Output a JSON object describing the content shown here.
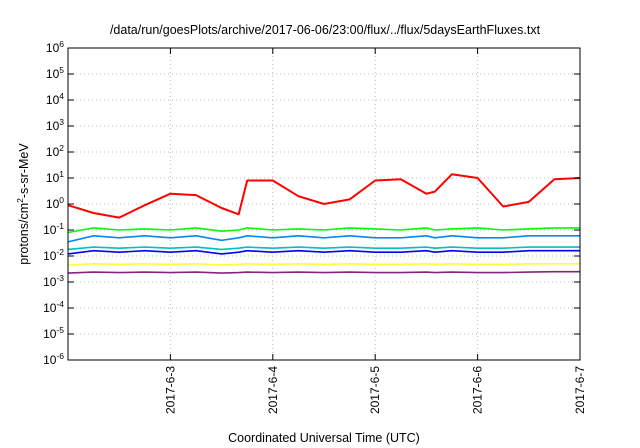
{
  "chart_data": {
    "type": "line",
    "title": "/data/run/goesPlots/archive/2017-06-06/23:00/flux/../flux/5daysEarthFluxes.txt",
    "xlabel": "Coordinated Universal Time (UTC)",
    "ylabel": {
      "base": "protons/cm",
      "sup": "2",
      "rest": "-s-sr-MeV"
    },
    "y_scale": "log",
    "ylim": [
      1e-06,
      1000000.0
    ],
    "y_ticks": [
      {
        "value": 1e-06,
        "base": "10",
        "exp": "-6"
      },
      {
        "value": 1e-05,
        "base": "10",
        "exp": "-5"
      },
      {
        "value": 0.0001,
        "base": "10",
        "exp": "-4"
      },
      {
        "value": 0.001,
        "base": "10",
        "exp": "-3"
      },
      {
        "value": 0.01,
        "base": "10",
        "exp": "-2"
      },
      {
        "value": 0.1,
        "base": "10",
        "exp": "-1"
      },
      {
        "value": 1.0,
        "base": "10",
        "exp": "0"
      },
      {
        "value": 10.0,
        "base": "10",
        "exp": "1"
      },
      {
        "value": 100.0,
        "base": "10",
        "exp": "2"
      },
      {
        "value": 1000.0,
        "base": "10",
        "exp": "3"
      },
      {
        "value": 10000.0,
        "base": "10",
        "exp": "4"
      },
      {
        "value": 100000.0,
        "base": "10",
        "exp": "5"
      },
      {
        "value": 1000000.0,
        "base": "10",
        "exp": "6"
      }
    ],
    "xlim": [
      "2017-06-02 00:00",
      "2017-06-07 00:00"
    ],
    "x_ticks": [
      "2017-6-3",
      "2017-6-4",
      "2017-6-5",
      "2017-6-6",
      "2017-6-7"
    ],
    "grid": true,
    "x": [
      "2017-06-02 00:00",
      "2017-06-02 06:00",
      "2017-06-02 12:00",
      "2017-06-02 18:00",
      "2017-06-03 00:00",
      "2017-06-03 06:00",
      "2017-06-03 12:00",
      "2017-06-03 16:00",
      "2017-06-03 18:00",
      "2017-06-04 00:00",
      "2017-06-04 06:00",
      "2017-06-04 12:00",
      "2017-06-04 18:00",
      "2017-06-05 00:00",
      "2017-06-05 06:00",
      "2017-06-05 12:00",
      "2017-06-05 14:00",
      "2017-06-05 18:00",
      "2017-06-06 00:00",
      "2017-06-06 06:00",
      "2017-06-06 12:00",
      "2017-06-06 18:00",
      "2017-06-07 00:00"
    ],
    "series": [
      {
        "color": "#ff0000",
        "values": [
          0.9,
          0.45,
          0.3,
          0.9,
          2.5,
          2.2,
          0.7,
          0.4,
          8.0,
          8.0,
          2.0,
          1.0,
          1.5,
          8.0,
          9.0,
          2.5,
          3.0,
          14.0,
          10.0,
          0.8,
          1.2,
          9.0,
          10.0
        ]
      },
      {
        "color": "#00ff00",
        "values": [
          0.08,
          0.12,
          0.1,
          0.11,
          0.1,
          0.12,
          0.09,
          0.1,
          0.12,
          0.1,
          0.11,
          0.1,
          0.12,
          0.11,
          0.1,
          0.12,
          0.1,
          0.11,
          0.12,
          0.1,
          0.11,
          0.12,
          0.12
        ]
      },
      {
        "color": "#0088ff",
        "values": [
          0.035,
          0.06,
          0.05,
          0.06,
          0.05,
          0.06,
          0.04,
          0.05,
          0.06,
          0.05,
          0.06,
          0.05,
          0.06,
          0.05,
          0.05,
          0.06,
          0.05,
          0.06,
          0.05,
          0.05,
          0.06,
          0.06,
          0.06
        ]
      },
      {
        "color": "#00c0c0",
        "values": [
          0.018,
          0.022,
          0.02,
          0.022,
          0.02,
          0.022,
          0.018,
          0.02,
          0.022,
          0.02,
          0.022,
          0.02,
          0.022,
          0.02,
          0.02,
          0.022,
          0.02,
          0.022,
          0.02,
          0.02,
          0.022,
          0.022,
          0.022
        ]
      },
      {
        "color": "#0000ff",
        "values": [
          0.012,
          0.016,
          0.014,
          0.016,
          0.014,
          0.016,
          0.012,
          0.014,
          0.016,
          0.014,
          0.016,
          0.014,
          0.016,
          0.014,
          0.014,
          0.016,
          0.014,
          0.016,
          0.014,
          0.014,
          0.016,
          0.016,
          0.016
        ]
      },
      {
        "color": "#ffff33",
        "values": [
          0.0045,
          0.005,
          0.0048,
          0.005,
          0.0048,
          0.005,
          0.0045,
          0.0048,
          0.005,
          0.0048,
          0.005,
          0.0048,
          0.005,
          0.0048,
          0.0048,
          0.005,
          0.0048,
          0.005,
          0.0048,
          0.0048,
          0.005,
          0.005,
          0.005
        ]
      },
      {
        "color": "#882288",
        "values": [
          0.0022,
          0.0024,
          0.0023,
          0.0024,
          0.0023,
          0.0024,
          0.0022,
          0.0023,
          0.0024,
          0.0023,
          0.0024,
          0.0023,
          0.0024,
          0.0023,
          0.0023,
          0.0024,
          0.0023,
          0.0024,
          0.0023,
          0.0023,
          0.0024,
          0.0025,
          0.0025
        ]
      }
    ]
  }
}
